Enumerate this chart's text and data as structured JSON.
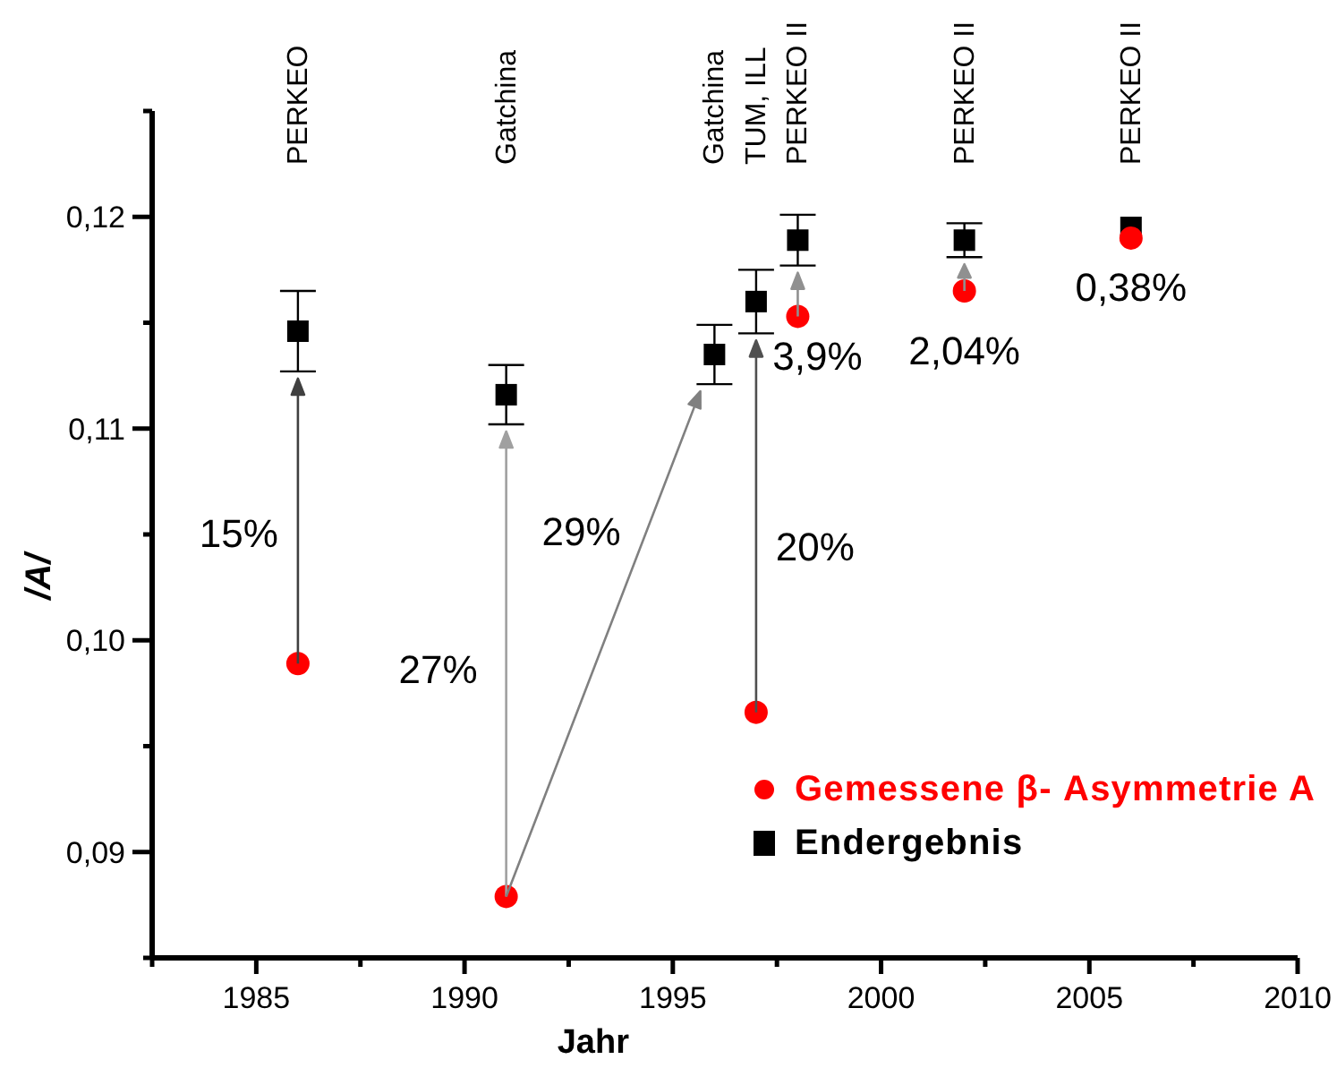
{
  "chart_data": {
    "type": "scatter",
    "xlabel": "Jahr",
    "ylabel": "/A/",
    "xlim": [
      1982.5,
      2010
    ],
    "xticks": [
      {
        "value": 1982.5,
        "label": null
      },
      1985,
      {
        "value": 1987.5,
        "label": null
      },
      1990,
      {
        "value": 1992.5,
        "label": null
      },
      1995,
      {
        "value": 1997.5,
        "label": null
      },
      2000,
      {
        "value": 2002.5,
        "label": null
      },
      2005,
      {
        "value": 2007.5,
        "label": null
      },
      2010
    ],
    "ylim": [
      0.085,
      0.125
    ],
    "yticks": [
      {
        "value": 0.085,
        "label": null
      },
      {
        "value": 0.09,
        "label": "0,09"
      },
      {
        "value": 0.095,
        "label": null
      },
      {
        "value": 0.1,
        "label": "0,10"
      },
      {
        "value": 0.105,
        "label": null
      },
      {
        "value": 0.11,
        "label": "0,11"
      },
      {
        "value": 0.115,
        "label": null
      },
      {
        "value": 0.12,
        "label": "0,12"
      },
      {
        "value": 0.125,
        "label": null
      }
    ],
    "legend": "bottom right",
    "series": [
      {
        "name": "Gemessene β- Asymmetrie A",
        "color": "#ff0000",
        "marker": "circle",
        "x": [
          1986,
          1991,
          1997,
          1998,
          2002,
          2006
        ],
        "values": [
          0.0989,
          0.0879,
          0.0966,
          0.1153,
          0.1165,
          0.119
        ]
      },
      {
        "name": "Endergebnis",
        "color": "#000000",
        "marker": "square",
        "x": [
          1986,
          1991,
          1996,
          1997,
          1998,
          2002,
          2006
        ],
        "values": [
          0.1146,
          0.1116,
          0.1135,
          0.116,
          0.1189,
          0.1189,
          0.1195
        ],
        "errors": [
          0.0019,
          0.0014,
          0.0014,
          0.0015,
          0.0012,
          0.0008,
          null
        ]
      }
    ],
    "annotations": [
      "PERKEO",
      "Gatchina",
      "Gatchina",
      "TUM, ILL",
      "PERKEO II",
      "PERKEO II",
      "PERKEO II",
      "15%",
      "27%",
      "29%",
      "20%",
      {
        "text": "3,9%",
        "x": 1998,
        "y": 0.1153
      },
      "2,04%",
      "0,38%"
    ]
  }
}
